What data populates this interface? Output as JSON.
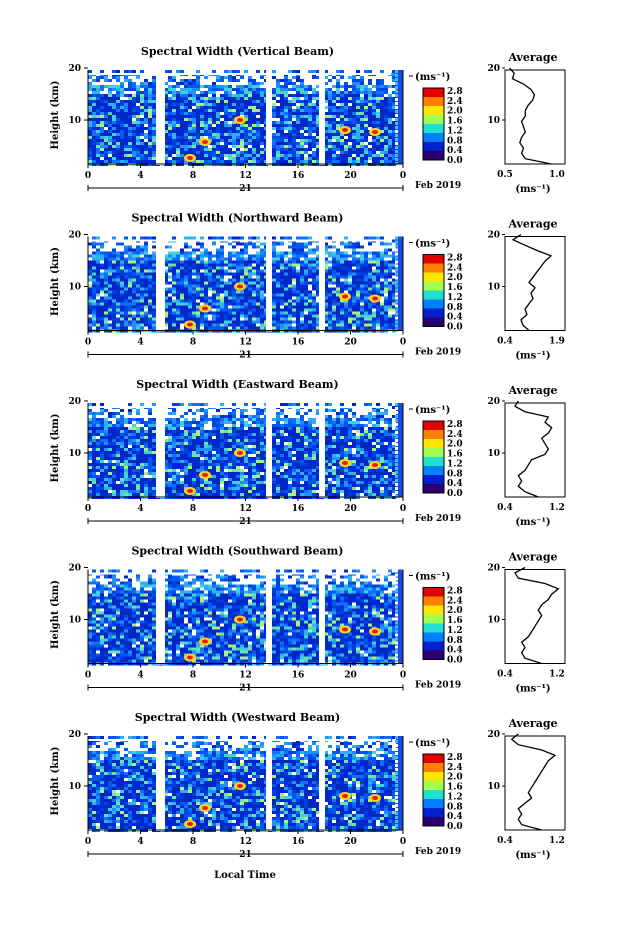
{
  "figure": {
    "xlabel": "Local Time",
    "date_month": "Feb 2019",
    "date_day": "21",
    "x_ticks": [
      "0",
      "4",
      "8",
      "12",
      "16",
      "20",
      "0"
    ],
    "y_ticks": [
      "20",
      "10"
    ],
    "ylabel": "Height (km)",
    "unit": "(ms⁻¹)",
    "avg_title": "Average",
    "avg_xlabel": "(ms⁻¹)"
  },
  "colorbar": {
    "ticks": [
      "2.8",
      "2.4",
      "2.0",
      "1.6",
      "1.2",
      "0.8",
      "0.4",
      "0.0"
    ],
    "colors": [
      "#e30000",
      "#ff7f00",
      "#ffe600",
      "#a0ff50",
      "#20e0d0",
      "#0080ff",
      "#0020d0",
      "#2a0070"
    ]
  },
  "chart_data": [
    {
      "type": "heatmap",
      "title": "Spectral Width (Vertical Beam)",
      "xlim": [
        0,
        24
      ],
      "ylim": [
        2,
        20
      ],
      "data_gaps_hours": [
        [
          5.1,
          5.8
        ],
        [
          13.6,
          14.3
        ],
        [
          17.7,
          18.3
        ]
      ],
      "avg_profile": {
        "type": "line",
        "title": "Average",
        "xticks": [
          "0.5",
          "1.0"
        ],
        "xlim": [
          0.5,
          1.15
        ],
        "height_km": [
          2,
          3,
          4,
          5,
          6,
          7,
          8,
          9,
          10,
          11,
          12,
          13,
          14,
          15,
          16,
          17,
          18,
          19,
          20
        ],
        "value": [
          1.0,
          0.72,
          0.68,
          0.7,
          0.66,
          0.68,
          0.72,
          0.7,
          0.68,
          0.72,
          0.72,
          0.75,
          0.8,
          0.82,
          0.78,
          0.7,
          0.58,
          0.6,
          0.55
        ]
      }
    },
    {
      "type": "heatmap",
      "title": "Spectral Width (Northward Beam)",
      "xlim": [
        0,
        24
      ],
      "ylim": [
        2,
        20
      ],
      "data_gaps_hours": [
        [
          5.1,
          5.8
        ],
        [
          13.6,
          14.3
        ],
        [
          17.7,
          18.3
        ]
      ],
      "avg_profile": {
        "type": "line",
        "title": "Average",
        "xticks": [
          "0.4",
          "1.9"
        ],
        "xlim": [
          0.4,
          1.9
        ],
        "height_km": [
          2,
          3,
          4,
          5,
          6,
          7,
          8,
          9,
          10,
          11,
          12,
          13,
          14,
          15,
          16,
          17,
          18,
          19,
          20
        ],
        "value": [
          1.0,
          0.85,
          0.8,
          0.95,
          0.9,
          1.0,
          1.1,
          1.05,
          1.15,
          1.0,
          1.1,
          1.2,
          1.3,
          1.4,
          1.55,
          1.2,
          0.9,
          0.6,
          0.8
        ]
      }
    },
    {
      "type": "heatmap",
      "title": "Spectral Width (Eastward Beam)",
      "xlim": [
        0,
        24
      ],
      "ylim": [
        2,
        20
      ],
      "data_gaps_hours": [
        [
          5.1,
          5.8
        ],
        [
          13.6,
          14.3
        ],
        [
          17.7,
          18.3
        ]
      ],
      "avg_profile": {
        "type": "line",
        "title": "Average",
        "xticks": [
          "0.4",
          "1.2"
        ],
        "xlim": [
          0.4,
          1.3
        ],
        "height_km": [
          2,
          3,
          4,
          5,
          6,
          7,
          8,
          9,
          10,
          11,
          12,
          13,
          14,
          15,
          16,
          17,
          18,
          19,
          20
        ],
        "value": [
          0.9,
          0.7,
          0.6,
          0.65,
          0.6,
          0.7,
          0.75,
          0.8,
          1.0,
          1.05,
          1.0,
          0.95,
          1.05,
          1.1,
          1.0,
          1.05,
          0.7,
          0.55,
          0.6
        ]
      }
    },
    {
      "type": "heatmap",
      "title": "Spectral Width (Southward Beam)",
      "xlim": [
        0,
        24
      ],
      "ylim": [
        2,
        20
      ],
      "data_gaps_hours": [
        [
          5.1,
          5.8
        ],
        [
          13.6,
          14.3
        ],
        [
          17.7,
          18.3
        ]
      ],
      "avg_profile": {
        "type": "line",
        "title": "Average",
        "xticks": [
          "0.4",
          "1.2"
        ],
        "xlim": [
          0.4,
          1.3
        ],
        "height_km": [
          2,
          3,
          4,
          5,
          6,
          7,
          8,
          9,
          10,
          11,
          12,
          13,
          14,
          15,
          16,
          17,
          18,
          19,
          20
        ],
        "value": [
          0.95,
          0.7,
          0.65,
          0.7,
          0.65,
          0.75,
          0.8,
          0.85,
          0.9,
          0.95,
          0.9,
          0.95,
          1.05,
          1.1,
          1.2,
          1.0,
          0.6,
          0.55,
          0.7
        ]
      }
    },
    {
      "type": "heatmap",
      "title": "Spectral Width (Westward Beam)",
      "xlim": [
        0,
        24
      ],
      "ylim": [
        2,
        20
      ],
      "data_gaps_hours": [
        [
          5.1,
          5.8
        ],
        [
          13.6,
          14.3
        ],
        [
          17.7,
          18.3
        ]
      ],
      "avg_profile": {
        "type": "line",
        "title": "Average",
        "xticks": [
          "0.4",
          "1.2"
        ],
        "xlim": [
          0.4,
          1.3
        ],
        "height_km": [
          2,
          3,
          4,
          5,
          6,
          7,
          8,
          9,
          10,
          11,
          12,
          13,
          14,
          15,
          16,
          17,
          18,
          19,
          20
        ],
        "value": [
          0.95,
          0.65,
          0.6,
          0.65,
          0.6,
          0.7,
          0.8,
          0.75,
          0.8,
          0.85,
          0.9,
          0.95,
          1.0,
          1.05,
          1.15,
          0.95,
          0.6,
          0.5,
          0.6
        ]
      }
    }
  ]
}
